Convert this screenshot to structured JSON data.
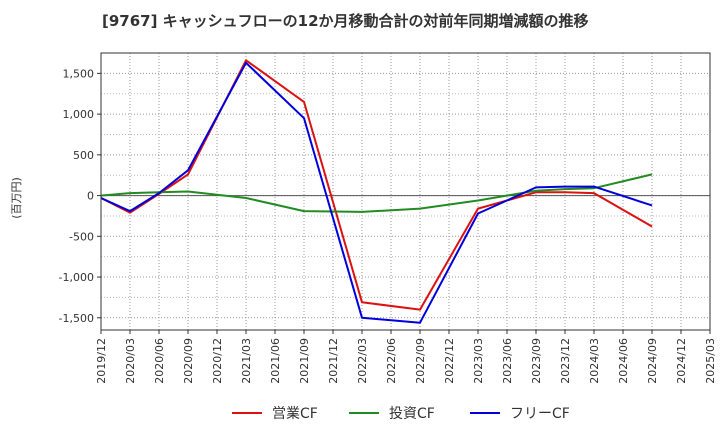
{
  "chart_data": {
    "type": "line",
    "title": "[9767]  キャッシュフローの12か月移動合計の対前年同期増減額の推移",
    "ylabel": "(百万円)",
    "xlabel": "",
    "ylim": [
      -1650,
      1750
    ],
    "yticks": [
      -1500,
      -1000,
      -500,
      0,
      500,
      1000,
      1500
    ],
    "ytick_labels": [
      "-1,500",
      "-1,000",
      "-500",
      "0",
      "500",
      "1,000",
      "1,500"
    ],
    "x": [
      "2019/12",
      "2020/03",
      "2020/06",
      "2020/09",
      "2020/12",
      "2021/03",
      "2021/06",
      "2021/09",
      "2021/12",
      "2022/03",
      "2022/06",
      "2022/09",
      "2022/12",
      "2023/03",
      "2023/06",
      "2023/09",
      "2023/12",
      "2024/03",
      "2024/06",
      "2024/09",
      "2024/12",
      "2025/03"
    ],
    "grid": true,
    "legend_position": "bottom-center",
    "series": [
      {
        "name": "営業CF",
        "color": "#dd1111",
        "values": [
          -30,
          -210,
          20,
          260,
          null,
          1660,
          null,
          1150,
          null,
          -1310,
          null,
          -1400,
          null,
          -160,
          null,
          40,
          40,
          30,
          null,
          -380,
          null,
          null
        ]
      },
      {
        "name": "投資CF",
        "color": "#228b22",
        "values": [
          0,
          30,
          40,
          50,
          null,
          -30,
          null,
          -190,
          null,
          -200,
          null,
          -160,
          null,
          -60,
          null,
          60,
          80,
          90,
          null,
          260,
          null,
          null
        ]
      },
      {
        "name": "フリーCF",
        "color": "#0000dd",
        "values": [
          -30,
          -190,
          30,
          310,
          null,
          1630,
          null,
          950,
          null,
          -1500,
          null,
          -1560,
          null,
          -220,
          null,
          100,
          110,
          110,
          null,
          -120,
          null,
          null
        ]
      }
    ]
  }
}
